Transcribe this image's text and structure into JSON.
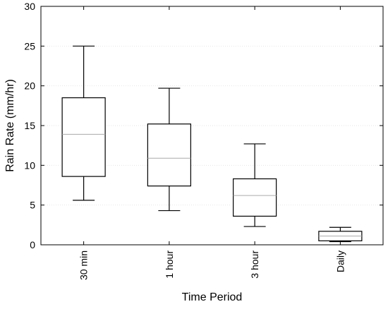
{
  "chart_data": {
    "type": "box",
    "title": "",
    "xlabel": "Time Period",
    "ylabel": "Rain Rate (mm/hr)",
    "ylim": [
      0,
      30
    ],
    "yticks": [
      0,
      5,
      10,
      15,
      20,
      25,
      30
    ],
    "grid": "horizontal dashed at major y ticks",
    "categories": [
      "30 min",
      "1 hour",
      "3 hour",
      "Daily"
    ],
    "boxes": [
      {
        "category": "30 min",
        "whisker_low": 5.6,
        "q1": 8.6,
        "median": 13.9,
        "q3": 18.5,
        "whisker_high": 25.0
      },
      {
        "category": "1 hour",
        "whisker_low": 4.3,
        "q1": 7.4,
        "median": 10.9,
        "q3": 15.2,
        "whisker_high": 19.7
      },
      {
        "category": "3 hour",
        "whisker_low": 2.3,
        "q1": 3.6,
        "median": 6.2,
        "q3": 8.3,
        "whisker_high": 12.7
      },
      {
        "category": "Daily",
        "whisker_low": 0.4,
        "q1": 0.5,
        "median": 1.1,
        "q3": 1.7,
        "whisker_high": 2.2
      }
    ],
    "colors": {
      "box_stroke": "#000000",
      "median": "#aaaaaa",
      "grid": "#e6e6e6",
      "axis": "#000000"
    }
  }
}
